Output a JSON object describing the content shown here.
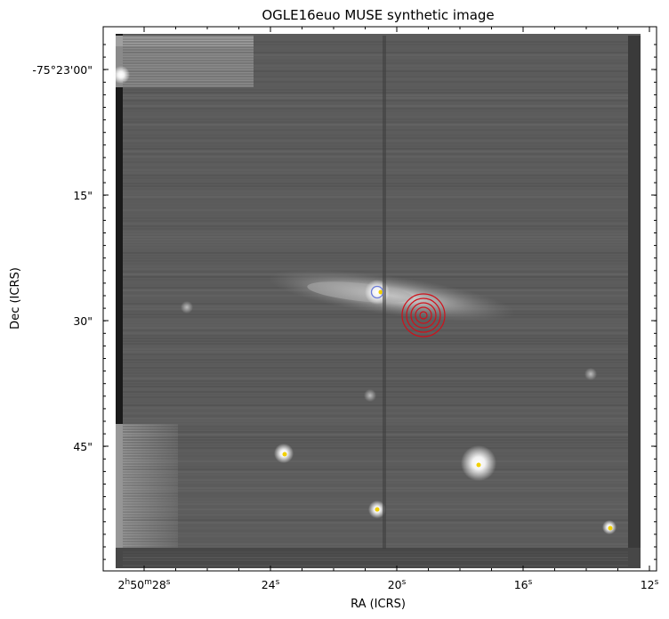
{
  "title": "OGLE16euo MUSE synthetic image",
  "xlabel": "RA (ICRS)",
  "ylabel": "Dec (ICRS)",
  "x_ticks": [
    {
      "h": "2",
      "m": "50",
      "s": "28",
      "hm": true
    },
    {
      "h": "",
      "m": "",
      "s": "24",
      "hm": false
    },
    {
      "h": "",
      "m": "",
      "s": "20",
      "hm": false
    },
    {
      "h": "",
      "m": "",
      "s": "16",
      "hm": false
    },
    {
      "h": "",
      "m": "",
      "s": "12",
      "hm": false
    }
  ],
  "y_ticks": [
    "-75°23'00\"",
    "15\"",
    "30\"",
    "45\""
  ],
  "colormap": "grayscale",
  "marker_colors": {
    "source_marker": "#f2d000",
    "target_marker": "#6a7ad8",
    "rings": "#d0101a"
  }
}
